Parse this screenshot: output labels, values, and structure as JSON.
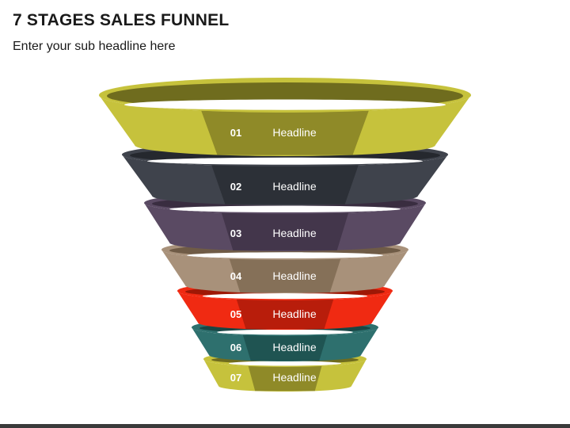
{
  "header": {
    "title": "7 STAGES SALES FUNNEL",
    "subtitle": "Enter your sub headline here"
  },
  "stages": [
    {
      "number": "01",
      "label": "Headline",
      "color": "#c6c23c",
      "dark": "#8f8a28",
      "inner": "#6f6c1e"
    },
    {
      "number": "02",
      "label": "Headline",
      "color": "#3f434c",
      "dark": "#2c3037",
      "inner": "#25282e"
    },
    {
      "number": "03",
      "label": "Headline",
      "color": "#5a4a63",
      "dark": "#43364b",
      "inner": "#392d40"
    },
    {
      "number": "04",
      "label": "Headline",
      "color": "#a8917a",
      "dark": "#857058",
      "inner": "#6f5b46"
    },
    {
      "number": "05",
      "label": "Headline",
      "color": "#f02a12",
      "dark": "#b81d0b",
      "inner": "#9e1806"
    },
    {
      "number": "06",
      "label": "Headline",
      "color": "#2e706e",
      "dark": "#1f5452",
      "inner": "#194644"
    },
    {
      "number": "07",
      "label": "Headline",
      "color": "#c6c23c",
      "dark": "#8f8a28",
      "inner": "#6f6c1e"
    }
  ]
}
